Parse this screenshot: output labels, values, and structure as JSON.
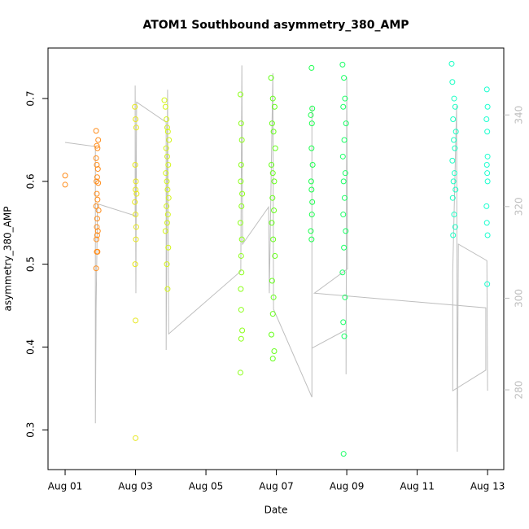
{
  "chart_data": {
    "type": "scatter",
    "title": "ATOM1 Southbound asymmetry_380_AMP",
    "x_label": "Date",
    "y_label": "asymmetry_380_AMP",
    "xlim": [
      -0.486,
      12.46
    ],
    "xticks": [
      {
        "value": 0,
        "label": "Aug 01"
      },
      {
        "value": 2,
        "label": "Aug 03"
      },
      {
        "value": 4,
        "label": "Aug 05"
      },
      {
        "value": 6,
        "label": "Aug 07"
      },
      {
        "value": 8,
        "label": "Aug 09"
      },
      {
        "value": 10,
        "label": "Aug 11"
      },
      {
        "value": 12,
        "label": "Aug 13"
      }
    ],
    "ylim": [
      0.252,
      0.761
    ],
    "yticks": [
      0.3,
      0.4,
      0.5,
      0.6,
      0.7
    ],
    "y2lim": [
      262.6,
      354.6
    ],
    "y2ticks": [
      280,
      300,
      320,
      340
    ],
    "series": [
      {
        "mode": "line",
        "axis": "y2",
        "color": "#bebebe",
        "x": [
          0,
          0.86,
          0.86,
          0.88,
          0.92,
          1.99,
          1.99,
          2.01,
          2.03,
          2.87,
          2.87,
          2.91,
          2.94,
          4.99,
          5.02,
          5.04,
          5.78,
          5.8,
          5.9,
          5.92,
          7.01,
          7.01,
          7.01,
          7.98,
          7.98,
          8.0,
          8.02,
          7.08,
          11.95,
          11.95,
          11.01,
          11.01,
          11.12,
          11.14,
          11.17,
          11.98,
          12.0
        ],
        "values": [
          334.0,
          333.1,
          272.7,
          297.6,
          320.6,
          318.0,
          346.4,
          301.1,
          342.8,
          338.4,
          288.7,
          345.5,
          292.2,
          305.9,
          350.8,
          311.8,
          319.9,
          301.1,
          349.1,
          297.6,
          278.4,
          342.0,
          289.1,
          293.1,
          283.4,
          348.2,
          306.4,
          301.1,
          297.9,
          284.3,
          279.8,
          305.6,
          342.0,
          266.5,
          311.8,
          308.2,
          279.8
        ]
      },
      {
        "mode": "points",
        "color": "#ff8c1a",
        "x": [
          0,
          0,
          0.88,
          0.9,
          0.92,
          0.88,
          0.9,
          0.93,
          0.91,
          0.89,
          0.94,
          0.9,
          0.92,
          0.88,
          0.95,
          0.91,
          0.9,
          0.93,
          0.89,
          0.92,
          0.9,
          0.91,
          0.88,
          0.94
        ],
        "values": [
          0.607,
          0.596,
          0.661,
          0.643,
          0.64,
          0.628,
          0.62,
          0.615,
          0.605,
          0.6,
          0.598,
          0.585,
          0.578,
          0.57,
          0.565,
          0.555,
          0.545,
          0.54,
          0.53,
          0.515,
          0.515,
          0.535,
          0.495,
          0.65
        ]
      },
      {
        "mode": "points",
        "color": "#e6e61a",
        "x": [
          1.98,
          2.0,
          2.02,
          1.99,
          2.01,
          2.0,
          2.03,
          1.98,
          2.0,
          2.02,
          2.01,
          1.99,
          2.0,
          2.0
        ],
        "values": [
          0.69,
          0.675,
          0.665,
          0.62,
          0.6,
          0.59,
          0.585,
          0.575,
          0.56,
          0.545,
          0.53,
          0.5,
          0.432,
          0.29
        ]
      },
      {
        "mode": "points",
        "color": "#d4f51a",
        "x": [
          2.82,
          2.85,
          2.88,
          2.9,
          2.92,
          2.95,
          2.87,
          2.9,
          2.93,
          2.86,
          2.89,
          2.91,
          2.94,
          2.88,
          2.92,
          2.9,
          2.85,
          2.93,
          2.89,
          2.91
        ],
        "values": [
          0.698,
          0.69,
          0.675,
          0.665,
          0.66,
          0.65,
          0.64,
          0.63,
          0.62,
          0.61,
          0.6,
          0.59,
          0.58,
          0.57,
          0.56,
          0.55,
          0.54,
          0.52,
          0.5,
          0.47
        ]
      },
      {
        "mode": "points",
        "color": "#8cff1a",
        "x": [
          4.98,
          5.0,
          5.02,
          5.0,
          4.99,
          5.03,
          5.01,
          4.98,
          5.02,
          5.0,
          5.01,
          4.99,
          5.0,
          5.03,
          5.0,
          4.98
        ],
        "values": [
          0.705,
          0.67,
          0.65,
          0.62,
          0.6,
          0.585,
          0.57,
          0.55,
          0.53,
          0.51,
          0.49,
          0.47,
          0.445,
          0.42,
          0.41,
          0.369
        ]
      },
      {
        "mode": "points",
        "color": "#66ff1a",
        "x": [
          5.85,
          5.9,
          5.95,
          5.88,
          5.92,
          5.97,
          5.86,
          5.9,
          5.94,
          5.89,
          5.93,
          5.87,
          5.91,
          5.96,
          5.88,
          5.92,
          5.9,
          5.86,
          5.94,
          5.9
        ],
        "values": [
          0.725,
          0.7,
          0.69,
          0.67,
          0.66,
          0.64,
          0.62,
          0.61,
          0.6,
          0.58,
          0.565,
          0.55,
          0.53,
          0.51,
          0.48,
          0.46,
          0.44,
          0.415,
          0.395,
          0.386
        ]
      },
      {
        "mode": "points",
        "color": "#1aff4d",
        "x": [
          7.0,
          7.02,
          6.98,
          7.01,
          7.0,
          7.03,
          6.99,
          7.0,
          7.02,
          7.01,
          6.98,
          7.0
        ],
        "values": [
          0.737,
          0.688,
          0.68,
          0.67,
          0.64,
          0.62,
          0.6,
          0.59,
          0.575,
          0.56,
          0.54,
          0.53
        ]
      },
      {
        "mode": "points",
        "color": "#1aff66",
        "x": [
          7.88,
          7.92,
          7.95,
          7.9,
          7.98,
          7.93,
          7.89,
          7.96,
          7.91,
          7.94,
          7.9,
          7.97,
          7.92,
          7.88,
          7.95,
          7.9,
          7.93,
          7.91
        ],
        "values": [
          0.741,
          0.725,
          0.7,
          0.69,
          0.67,
          0.65,
          0.63,
          0.61,
          0.6,
          0.58,
          0.56,
          0.54,
          0.52,
          0.49,
          0.46,
          0.43,
          0.413,
          0.271
        ]
      },
      {
        "mode": "points",
        "color": "#1affc4",
        "x": [
          10.98,
          11.0,
          11.05,
          11.08,
          11.02,
          11.1,
          11.04,
          11.07,
          11.0,
          11.06,
          11.03,
          11.09,
          11.01,
          11.05,
          11.08,
          11.02
        ],
        "values": [
          0.742,
          0.72,
          0.7,
          0.69,
          0.675,
          0.66,
          0.65,
          0.64,
          0.625,
          0.61,
          0.6,
          0.59,
          0.58,
          0.56,
          0.545,
          0.535
        ]
      },
      {
        "mode": "points",
        "color": "#1affcf",
        "x": [
          11.98,
          12.0,
          11.97,
          11.99,
          12.0,
          11.98,
          11.99,
          12.0,
          11.97,
          11.98,
          12.0,
          11.99
        ],
        "values": [
          0.711,
          0.69,
          0.675,
          0.66,
          0.63,
          0.62,
          0.61,
          0.6,
          0.57,
          0.55,
          0.535,
          0.476
        ]
      }
    ]
  }
}
